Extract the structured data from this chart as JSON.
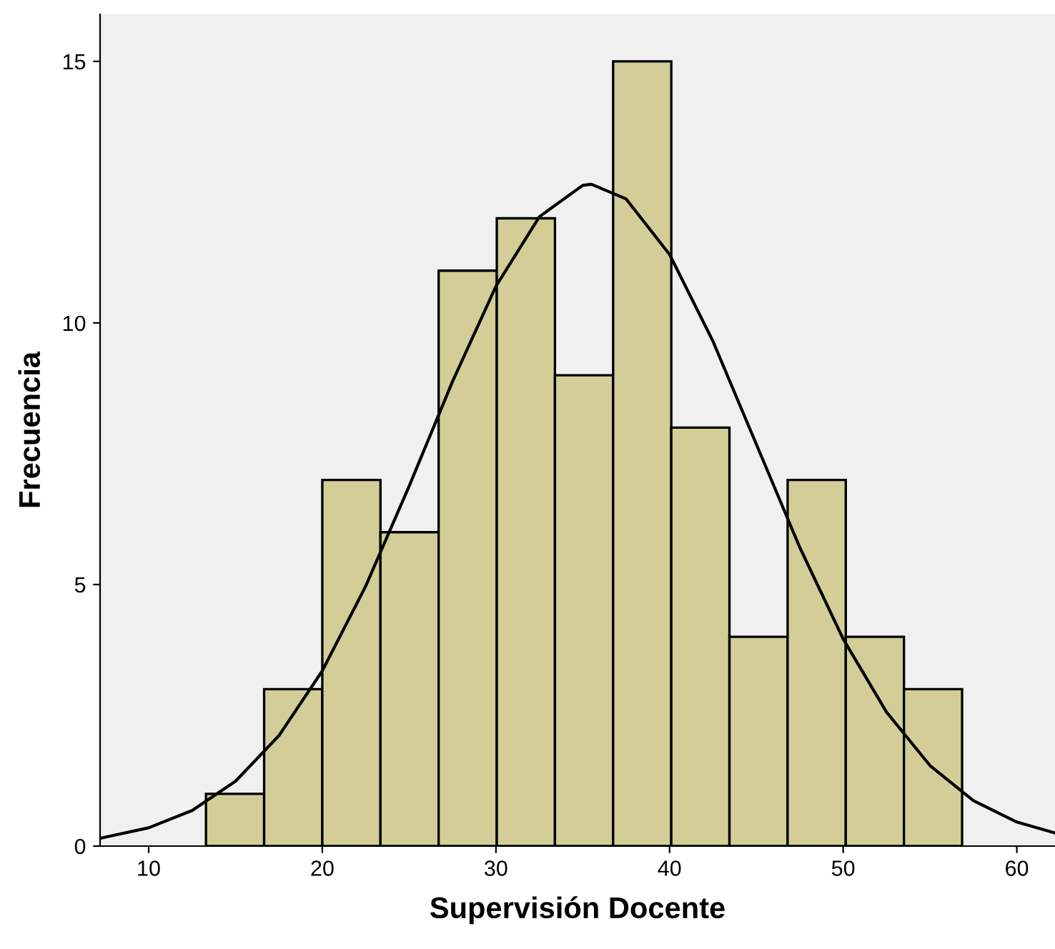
{
  "chart_data": {
    "type": "histogram",
    "xlabel": "Supervisión Docente",
    "ylabel": "Frecuencia",
    "bins": [
      13.3,
      16.65,
      20,
      23.35,
      26.7,
      30.05,
      33.4,
      36.75,
      40.1,
      43.45,
      46.8,
      50.15,
      53.5,
      56.85
    ],
    "values": [
      1,
      3,
      7,
      6,
      11,
      12,
      9,
      15,
      8,
      4,
      7,
      4,
      3
    ],
    "color": "#d3ce97",
    "series": [
      {
        "type": "line",
        "color": "#000000",
        "x": [
          7.2,
          7.5,
          10,
          12.5,
          15,
          17.5,
          20,
          22.5,
          25,
          27.5,
          30,
          32.5,
          35,
          35.5,
          37.5,
          40,
          42.5,
          45,
          47.5,
          50,
          52.5,
          55,
          57.5,
          60,
          62.2
        ],
        "values": [
          0.15,
          0.17,
          0.35,
          0.68,
          1.24,
          2.11,
          3.35,
          4.97,
          6.88,
          8.88,
          10.7,
          12.03,
          12.63,
          12.65,
          12.37,
          11.31,
          9.65,
          7.68,
          5.71,
          3.96,
          2.56,
          1.54,
          0.87,
          0.46,
          0.25
        ]
      }
    ],
    "xlim": [
      7.2,
      62.2
    ],
    "ylim": [
      0,
      15.9
    ],
    "xticks": [
      10,
      20,
      30,
      40,
      50,
      60
    ],
    "yticks": [
      0,
      5,
      10,
      15
    ],
    "grid": false,
    "legend": false
  }
}
